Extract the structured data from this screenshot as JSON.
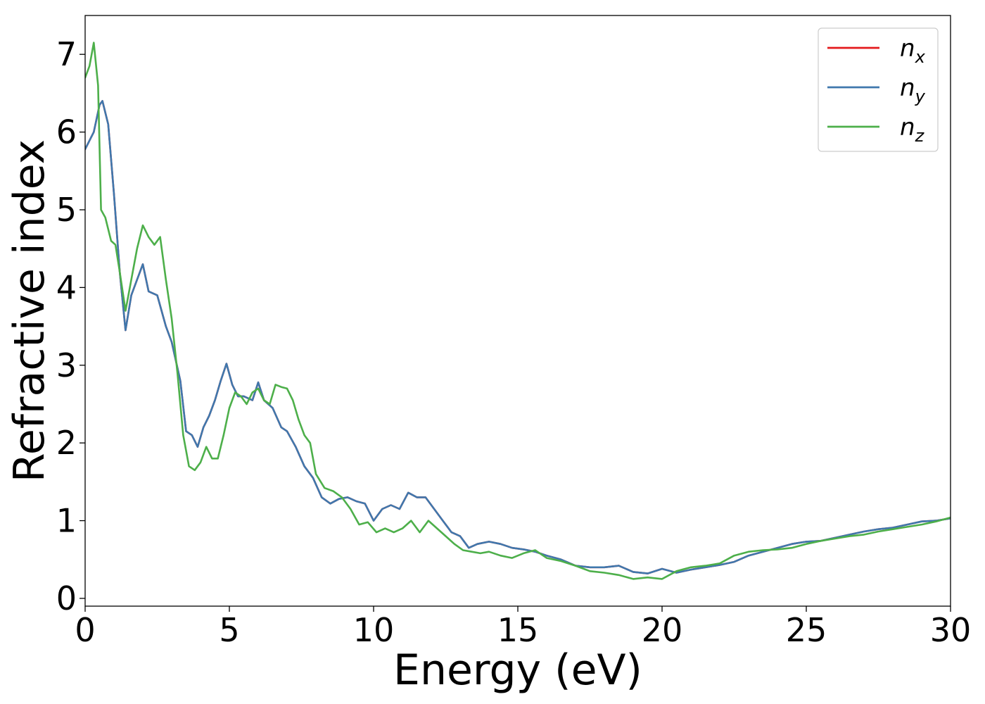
{
  "chart_data": {
    "type": "line",
    "xlabel": "Energy (eV)",
    "ylabel": "Refractive index",
    "xlim": [
      0,
      30
    ],
    "ylim": [
      -0.1,
      7.5
    ],
    "xticks": [
      "0",
      "5",
      "10",
      "15",
      "20",
      "25",
      "30"
    ],
    "yticks": [
      "0",
      "1",
      "2",
      "3",
      "4",
      "5",
      "6",
      "7"
    ],
    "grid": false,
    "legend_position": "top-right",
    "series": [
      {
        "name": "n_x",
        "label_base": "n",
        "label_sub": "x",
        "color": "#e41a1c",
        "x": [
          0,
          0.3,
          0.5,
          0.6,
          0.8,
          1.0,
          1.2,
          1.4,
          1.6,
          1.8,
          2.0,
          2.2,
          2.5,
          2.8,
          3.0,
          3.3,
          3.5,
          3.7,
          3.9,
          4.1,
          4.3,
          4.5,
          4.7,
          4.9,
          5.1,
          5.3,
          5.5,
          5.8,
          6.0,
          6.2,
          6.5,
          6.8,
          7.0,
          7.3,
          7.6,
          7.9,
          8.2,
          8.5,
          8.8,
          9.1,
          9.4,
          9.7,
          10.0,
          10.3,
          10.6,
          10.9,
          11.2,
          11.5,
          11.8,
          12.1,
          12.4,
          12.7,
          13.0,
          13.3,
          13.6,
          14.0,
          14.4,
          14.8,
          15.2,
          15.6,
          16.0,
          16.5,
          17.0,
          17.5,
          18.0,
          18.5,
          19.0,
          19.5,
          20.0,
          20.5,
          21.0,
          21.5,
          22.0,
          22.5,
          23.0,
          23.5,
          24.0,
          24.5,
          25.0,
          25.5,
          26.0,
          26.5,
          27.0,
          27.5,
          28.0,
          28.5,
          29.0,
          29.5,
          30.0
        ],
        "values": [
          5.78,
          6.0,
          6.35,
          6.4,
          6.1,
          5.2,
          4.2,
          3.45,
          3.9,
          4.1,
          4.3,
          3.95,
          3.9,
          3.5,
          3.3,
          2.8,
          2.15,
          2.1,
          1.95,
          2.2,
          2.35,
          2.55,
          2.8,
          3.02,
          2.75,
          2.6,
          2.6,
          2.55,
          2.78,
          2.55,
          2.45,
          2.2,
          2.15,
          1.95,
          1.7,
          1.55,
          1.3,
          1.22,
          1.28,
          1.3,
          1.25,
          1.22,
          1.0,
          1.15,
          1.2,
          1.15,
          1.36,
          1.3,
          1.3,
          1.15,
          1.0,
          0.85,
          0.8,
          0.65,
          0.7,
          0.73,
          0.7,
          0.65,
          0.63,
          0.6,
          0.55,
          0.5,
          0.42,
          0.4,
          0.4,
          0.42,
          0.34,
          0.32,
          0.38,
          0.33,
          0.37,
          0.4,
          0.43,
          0.47,
          0.55,
          0.6,
          0.65,
          0.7,
          0.73,
          0.74,
          0.78,
          0.82,
          0.86,
          0.89,
          0.91,
          0.95,
          0.99,
          1.0,
          1.03
        ]
      },
      {
        "name": "n_y",
        "label_base": "n",
        "label_sub": "y",
        "color": "#3f78ad",
        "x": [
          0,
          0.3,
          0.5,
          0.6,
          0.8,
          1.0,
          1.2,
          1.4,
          1.6,
          1.8,
          2.0,
          2.2,
          2.5,
          2.8,
          3.0,
          3.3,
          3.5,
          3.7,
          3.9,
          4.1,
          4.3,
          4.5,
          4.7,
          4.9,
          5.1,
          5.3,
          5.5,
          5.8,
          6.0,
          6.2,
          6.5,
          6.8,
          7.0,
          7.3,
          7.6,
          7.9,
          8.2,
          8.5,
          8.8,
          9.1,
          9.4,
          9.7,
          10.0,
          10.3,
          10.6,
          10.9,
          11.2,
          11.5,
          11.8,
          12.1,
          12.4,
          12.7,
          13.0,
          13.3,
          13.6,
          14.0,
          14.4,
          14.8,
          15.2,
          15.6,
          16.0,
          16.5,
          17.0,
          17.5,
          18.0,
          18.5,
          19.0,
          19.5,
          20.0,
          20.5,
          21.0,
          21.5,
          22.0,
          22.5,
          23.0,
          23.5,
          24.0,
          24.5,
          25.0,
          25.5,
          26.0,
          26.5,
          27.0,
          27.5,
          28.0,
          28.5,
          29.0,
          29.5,
          30.0
        ],
        "values": [
          5.78,
          6.0,
          6.35,
          6.4,
          6.1,
          5.2,
          4.2,
          3.45,
          3.9,
          4.1,
          4.3,
          3.95,
          3.9,
          3.5,
          3.3,
          2.8,
          2.15,
          2.1,
          1.95,
          2.2,
          2.35,
          2.55,
          2.8,
          3.02,
          2.75,
          2.6,
          2.6,
          2.55,
          2.78,
          2.55,
          2.45,
          2.2,
          2.15,
          1.95,
          1.7,
          1.55,
          1.3,
          1.22,
          1.28,
          1.3,
          1.25,
          1.22,
          1.0,
          1.15,
          1.2,
          1.15,
          1.36,
          1.3,
          1.3,
          1.15,
          1.0,
          0.85,
          0.8,
          0.65,
          0.7,
          0.73,
          0.7,
          0.65,
          0.63,
          0.6,
          0.55,
          0.5,
          0.42,
          0.4,
          0.4,
          0.42,
          0.34,
          0.32,
          0.38,
          0.33,
          0.37,
          0.4,
          0.43,
          0.47,
          0.55,
          0.6,
          0.65,
          0.7,
          0.73,
          0.74,
          0.78,
          0.82,
          0.86,
          0.89,
          0.91,
          0.95,
          0.99,
          1.0,
          1.03
        ]
      },
      {
        "name": "n_z",
        "label_base": "n",
        "label_sub": "z",
        "color": "#4daf4a",
        "x": [
          0,
          0.15,
          0.3,
          0.45,
          0.55,
          0.7,
          0.9,
          1.05,
          1.2,
          1.4,
          1.6,
          1.8,
          2.0,
          2.2,
          2.4,
          2.6,
          2.8,
          3.0,
          3.2,
          3.4,
          3.6,
          3.8,
          4.0,
          4.2,
          4.4,
          4.6,
          4.8,
          5.0,
          5.2,
          5.4,
          5.6,
          5.8,
          6.0,
          6.2,
          6.4,
          6.6,
          6.8,
          7.0,
          7.2,
          7.4,
          7.6,
          7.8,
          8.0,
          8.3,
          8.6,
          8.9,
          9.2,
          9.5,
          9.8,
          10.1,
          10.4,
          10.7,
          11.0,
          11.3,
          11.6,
          11.9,
          12.2,
          12.5,
          12.8,
          13.1,
          13.4,
          13.7,
          14.0,
          14.4,
          14.8,
          15.2,
          15.6,
          16.0,
          16.5,
          17.0,
          17.5,
          18.0,
          18.5,
          19.0,
          19.5,
          20.0,
          20.5,
          21.0,
          21.5,
          22.0,
          22.5,
          23.0,
          23.5,
          24.0,
          24.5,
          25.0,
          25.5,
          26.0,
          26.5,
          27.0,
          27.5,
          28.0,
          28.5,
          29.0,
          29.5,
          30.0
        ],
        "values": [
          6.7,
          6.85,
          7.15,
          6.6,
          5.0,
          4.9,
          4.6,
          4.55,
          4.2,
          3.7,
          4.1,
          4.5,
          4.8,
          4.65,
          4.55,
          4.65,
          4.1,
          3.6,
          2.9,
          2.1,
          1.7,
          1.65,
          1.75,
          1.95,
          1.8,
          1.8,
          2.1,
          2.45,
          2.65,
          2.6,
          2.5,
          2.65,
          2.7,
          2.55,
          2.5,
          2.75,
          2.72,
          2.7,
          2.55,
          2.3,
          2.1,
          2.0,
          1.6,
          1.42,
          1.38,
          1.3,
          1.15,
          0.95,
          0.98,
          0.85,
          0.9,
          0.85,
          0.9,
          1.0,
          0.85,
          1.0,
          0.9,
          0.8,
          0.7,
          0.62,
          0.6,
          0.58,
          0.6,
          0.55,
          0.52,
          0.58,
          0.62,
          0.52,
          0.48,
          0.42,
          0.35,
          0.33,
          0.3,
          0.25,
          0.27,
          0.25,
          0.35,
          0.4,
          0.42,
          0.45,
          0.55,
          0.6,
          0.62,
          0.63,
          0.65,
          0.7,
          0.74,
          0.77,
          0.8,
          0.82,
          0.86,
          0.89,
          0.92,
          0.95,
          0.99,
          1.04
        ]
      }
    ]
  }
}
